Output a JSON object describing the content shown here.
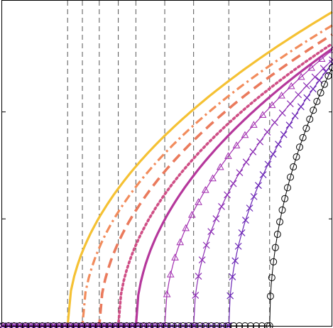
{
  "chart_data": {
    "type": "line",
    "title": "",
    "xlabel": "",
    "ylabel": "",
    "grid": false,
    "legend": "none",
    "xlim": [
      0,
      469
    ],
    "ylim": [
      0,
      462
    ],
    "y_ticks": [
      152,
      304
    ],
    "thresholds": [
      93,
      114,
      138,
      165,
      190,
      231,
      272,
      322,
      380
    ],
    "series": [
      {
        "threshold": 93,
        "y_end": 446,
        "color": "#f5c133",
        "style": "solid",
        "marker": "none",
        "width": 3.2
      },
      {
        "threshold": 114,
        "y_end": 427,
        "color": "#f28c5c",
        "style": "dashdot",
        "marker": "none",
        "width": 3.2
      },
      {
        "threshold": 138,
        "y_end": 414,
        "color": "#ea7a5c",
        "style": "dashed",
        "marker": "none",
        "width": 3.6
      },
      {
        "threshold": 165,
        "y_end": 401,
        "color": "#cf4f86",
        "style": "dotted",
        "marker": "none",
        "width": 3.6
      },
      {
        "threshold": 190,
        "y_end": 394,
        "color": "#b5379b",
        "style": "solid",
        "marker": "none",
        "width": 3.2
      },
      {
        "threshold": 231,
        "y_end": 392,
        "color": "#a22fb0",
        "style": "solid",
        "marker": "triangle",
        "width": 1.2
      },
      {
        "threshold": 272,
        "y_end": 378,
        "color": "#8b2cb3",
        "style": "solid",
        "marker": "x",
        "width": 1.2
      },
      {
        "threshold": 322,
        "y_end": 373,
        "color": "#6a24b5",
        "style": "solid",
        "marker": "x",
        "width": 1.2
      },
      {
        "threshold": 380,
        "y_end": 367,
        "color": "#000000",
        "style": "solid",
        "marker": "circle",
        "width": 1.0
      }
    ]
  }
}
